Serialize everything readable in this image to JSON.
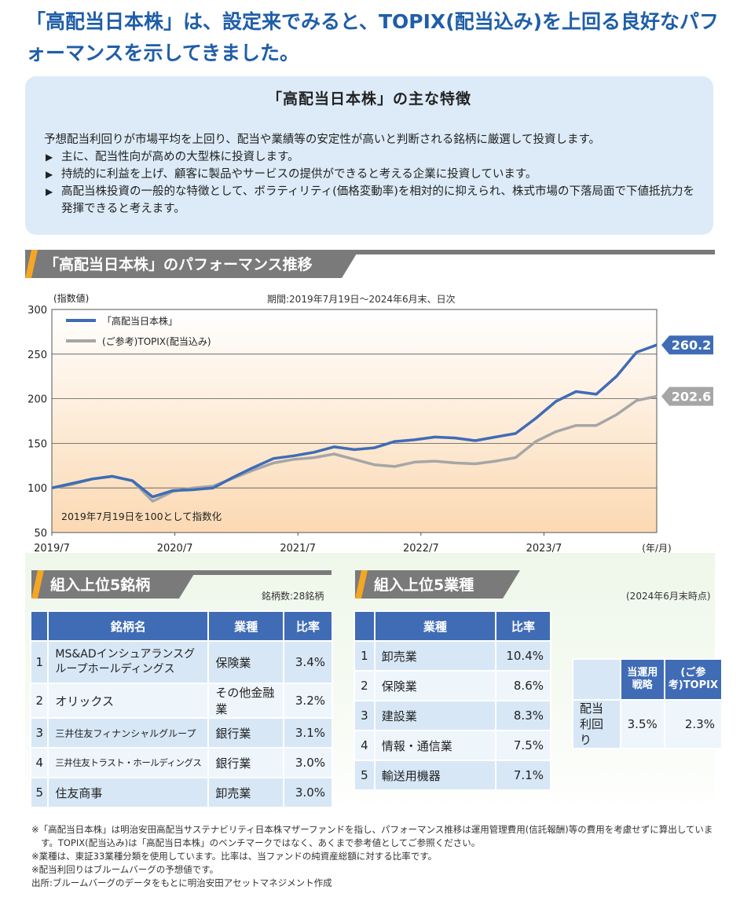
{
  "headline": "「高配当日本株」は、設定来でみると、TOPIX(配当込み)を上回る良好なパフォーマンスを示してきました。",
  "features": {
    "title": "「高配当日本株」の主な特徴",
    "intro": "予想配当利回りが市場平均を上回り、配当や業績等の安定性が高いと判断される銘柄に厳選して投資します。",
    "bullets": [
      "主に、配当性向が高めの大型株に投資します。",
      "持続的に利益を上げ、顧客に製品やサービスの提供ができると考える企業に投資しています。",
      "高配当株投資の一般的な特徴として、ボラティリティ(価格変動率)を相対的に抑えられ、株式市場の下落局面で下値抵抗力を発揮できると考えます。"
    ],
    "bullet_icon": "triangle-right-icon"
  },
  "performance": {
    "section_title": "「高配当日本株」のパフォーマンス推移",
    "period": "期間:2019年7月19日〜2024年6月末、日次",
    "note": "2019年7月19日を100として指数化"
  },
  "chart_data": {
    "type": "line",
    "ylabel": "(指数値)",
    "xlabel": "(年/月)",
    "ylim": [
      50,
      300
    ],
    "yticks": [
      "300",
      "250",
      "200",
      "150",
      "100",
      "50"
    ],
    "xticks": [
      "2019/7",
      "2020/7",
      "2021/7",
      "2022/7",
      "2023/7"
    ],
    "legend": "top-left",
    "grid": true,
    "x": [
      "2019/07",
      "2019/09",
      "2019/11",
      "2020/01",
      "2020/02",
      "2020/03",
      "2020/05",
      "2020/07",
      "2020/09",
      "2020/11",
      "2021/01",
      "2021/03",
      "2021/05",
      "2021/07",
      "2021/09",
      "2021/11",
      "2022/01",
      "2022/03",
      "2022/05",
      "2022/07",
      "2022/09",
      "2022/11",
      "2023/01",
      "2023/03",
      "2023/05",
      "2023/07",
      "2023/09",
      "2023/11",
      "2024/01",
      "2024/03",
      "2024/06"
    ],
    "series": [
      {
        "name": "「高配当日本株」",
        "color": "#3f6cb5",
        "end_label": "260.2",
        "values": [
          100,
          105,
          110,
          113,
          108,
          90,
          97,
          98,
          100,
          112,
          123,
          133,
          136,
          140,
          146,
          143,
          145,
          152,
          154,
          157,
          156,
          153,
          157,
          161,
          178,
          197,
          208,
          205,
          225,
          252,
          260.2
        ]
      },
      {
        "name": "(ご参考)TOPIX(配当込み)",
        "color": "#a6a6a6",
        "end_label": "202.6",
        "values": [
          100,
          104,
          110,
          113,
          108,
          85,
          96,
          100,
          102,
          111,
          120,
          128,
          132,
          134,
          138,
          132,
          126,
          124,
          129,
          130,
          128,
          127,
          130,
          134,
          152,
          163,
          170,
          170,
          182,
          198,
          202.6
        ]
      }
    ]
  },
  "top_stocks": {
    "section_title": "組入上位5銘柄",
    "count_label": "銘柄数:28銘柄",
    "headers": [
      "銘柄名",
      "業種",
      "比率"
    ],
    "rows": [
      {
        "rank": "1",
        "name": "MS&ADインシュアランスグループホールディングス",
        "sector": "保険業",
        "ratio": "3.4%"
      },
      {
        "rank": "2",
        "name": "オリックス",
        "sector": "その他金融業",
        "ratio": "3.2%"
      },
      {
        "rank": "3",
        "name": "三井住友フィナンシャルグループ",
        "sector": "銀行業",
        "ratio": "3.1%"
      },
      {
        "rank": "4",
        "name": "三井住友トラスト・ホールディングス",
        "sector": "銀行業",
        "ratio": "3.0%"
      },
      {
        "rank": "5",
        "name": "住友商事",
        "sector": "卸売業",
        "ratio": "3.0%"
      }
    ]
  },
  "top_sectors": {
    "section_title": "組入上位5業種",
    "as_of": "(2024年6月末時点)",
    "headers": [
      "業種",
      "比率"
    ],
    "rows": [
      {
        "rank": "1",
        "sector": "卸売業",
        "ratio": "10.4%"
      },
      {
        "rank": "2",
        "sector": "保険業",
        "ratio": "8.6%"
      },
      {
        "rank": "3",
        "sector": "建設業",
        "ratio": "8.3%"
      },
      {
        "rank": "4",
        "sector": "情報・通信業",
        "ratio": "7.5%"
      },
      {
        "rank": "5",
        "sector": "輸送用機器",
        "ratio": "7.1%"
      }
    ]
  },
  "yield_table": {
    "headers": [
      "当運用戦略",
      "(ご参考)TOPIX"
    ],
    "row_label": "配当利回り",
    "values": [
      "3.5%",
      "2.3%"
    ]
  },
  "footnotes": [
    "※「高配当日本株」は明治安田高配当サステナビリティ日本株マザーファンドを指し、パフォーマンス推移は運用管理費用(信託報酬)等の費用を考慮せずに算出しています。TOPIX(配当込み)は「高配当日本株」のベンチマークではなく、あくまで参考値としてご参照ください。",
    "※業種は、東証33業種分類を使用しています。比率は、当ファンドの純資産総額に対する比率です。",
    "※配当利回りはブルームバーグの予想値です。",
    "出所:ブルームバーグのデータをもとに明治安田アセットマネジメント作成"
  ]
}
